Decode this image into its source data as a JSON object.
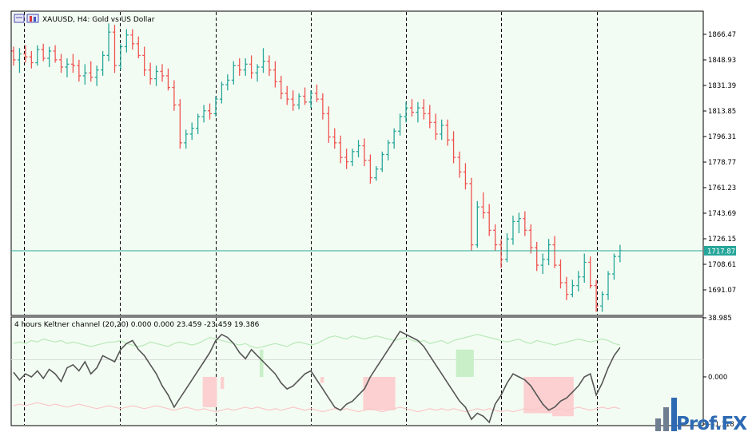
{
  "header": {
    "symbol_title": "XAUUSD, H4:  Gold vs US Dollar",
    "indicator_title": "4 hours Keltner channel (20,20) 0.000 0.000 23.459 -23.459 19.386"
  },
  "price_axis": {
    "ticks": [
      "1866.47",
      "1848.93",
      "1831.39",
      "1813.85",
      "1796.31",
      "1778.77",
      "1761.23",
      "1743.69",
      "1726.15",
      "1708.61",
      "1691.07"
    ],
    "current_price": "1717.87"
  },
  "indicator_axis": {
    "ticks": [
      "38.985",
      "0.000",
      "-31.118"
    ]
  },
  "watermark": {
    "text": "Prof.FX"
  },
  "colors": {
    "background": "#f3fcf3",
    "bull": "#26a69a",
    "bear": "#ef5350",
    "grid": "#000000",
    "current_line": "#26a69a",
    "price_tag_bg": "#26a69a",
    "osc_line": "#555555",
    "band_upper": "#b7e9b7",
    "band_lower": "#f9c8c8",
    "hist_pos": "#c8efc8",
    "hist_neg": "#fcd0d0",
    "watermark_blue": "#2e6ab3",
    "watermark_gray": "#6f7f91"
  },
  "chart_data": [
    {
      "type": "candlestick",
      "title": "XAUUSD, H4:  Gold vs US Dollar",
      "ylim": [
        1680,
        1876
      ],
      "current_price": 1717.87,
      "ohlc": [
        [
          1855,
          1858,
          1845,
          1849
        ],
        [
          1849,
          1857,
          1840,
          1853
        ],
        [
          1853,
          1859,
          1847,
          1851
        ],
        [
          1851,
          1855,
          1843,
          1847
        ],
        [
          1847,
          1859,
          1845,
          1856
        ],
        [
          1856,
          1860,
          1848,
          1850
        ],
        [
          1850,
          1858,
          1844,
          1855
        ],
        [
          1855,
          1859,
          1847,
          1849
        ],
        [
          1849,
          1853,
          1840,
          1844
        ],
        [
          1844,
          1850,
          1837,
          1846
        ],
        [
          1846,
          1853,
          1840,
          1845
        ],
        [
          1845,
          1849,
          1834,
          1838
        ],
        [
          1838,
          1846,
          1832,
          1840
        ],
        [
          1840,
          1848,
          1834,
          1837
        ],
        [
          1837,
          1845,
          1831,
          1842
        ],
        [
          1842,
          1855,
          1838,
          1852
        ],
        [
          1852,
          1874,
          1848,
          1868
        ],
        [
          1868,
          1873,
          1840,
          1845
        ],
        [
          1845,
          1860,
          1842,
          1858
        ],
        [
          1858,
          1870,
          1854,
          1866
        ],
        [
          1866,
          1870,
          1856,
          1860
        ],
        [
          1860,
          1865,
          1850,
          1852
        ],
        [
          1852,
          1858,
          1838,
          1842
        ],
        [
          1842,
          1847,
          1832,
          1836
        ],
        [
          1836,
          1845,
          1831,
          1841
        ],
        [
          1841,
          1846,
          1834,
          1838
        ],
        [
          1838,
          1843,
          1828,
          1830
        ],
        [
          1830,
          1835,
          1814,
          1818
        ],
        [
          1818,
          1822,
          1788,
          1792
        ],
        [
          1792,
          1801,
          1788,
          1798
        ],
        [
          1798,
          1806,
          1794,
          1802
        ],
        [
          1802,
          1812,
          1798,
          1810
        ],
        [
          1810,
          1818,
          1806,
          1814
        ],
        [
          1814,
          1819,
          1808,
          1812
        ],
        [
          1812,
          1824,
          1810,
          1822
        ],
        [
          1822,
          1834,
          1819,
          1832
        ],
        [
          1832,
          1839,
          1828,
          1835
        ],
        [
          1835,
          1848,
          1832,
          1845
        ],
        [
          1845,
          1850,
          1838,
          1842
        ],
        [
          1842,
          1850,
          1838,
          1846
        ],
        [
          1846,
          1852,
          1836,
          1840
        ],
        [
          1840,
          1846,
          1834,
          1844
        ],
        [
          1844,
          1857,
          1840,
          1848
        ],
        [
          1848,
          1852,
          1838,
          1842
        ],
        [
          1842,
          1848,
          1830,
          1834
        ],
        [
          1834,
          1838,
          1822,
          1826
        ],
        [
          1826,
          1831,
          1818,
          1822
        ],
        [
          1822,
          1828,
          1814,
          1818
        ],
        [
          1818,
          1826,
          1815,
          1824
        ],
        [
          1824,
          1830,
          1818,
          1820
        ],
        [
          1820,
          1828,
          1816,
          1826
        ],
        [
          1826,
          1832,
          1820,
          1822
        ],
        [
          1822,
          1826,
          1808,
          1812
        ],
        [
          1812,
          1817,
          1792,
          1796
        ],
        [
          1796,
          1802,
          1788,
          1792
        ],
        [
          1792,
          1797,
          1778,
          1782
        ],
        [
          1782,
          1788,
          1774,
          1779
        ],
        [
          1779,
          1788,
          1776,
          1786
        ],
        [
          1786,
          1794,
          1782,
          1790
        ],
        [
          1790,
          1795,
          1776,
          1780
        ],
        [
          1780,
          1784,
          1764,
          1768
        ],
        [
          1768,
          1776,
          1766,
          1774
        ],
        [
          1774,
          1786,
          1772,
          1784
        ],
        [
          1784,
          1794,
          1780,
          1792
        ],
        [
          1792,
          1802,
          1788,
          1800
        ],
        [
          1800,
          1812,
          1797,
          1810
        ],
        [
          1810,
          1820,
          1806,
          1816
        ],
        [
          1816,
          1822,
          1810,
          1813
        ],
        [
          1813,
          1820,
          1806,
          1816
        ],
        [
          1816,
          1822,
          1808,
          1812
        ],
        [
          1812,
          1818,
          1802,
          1806
        ],
        [
          1806,
          1812,
          1794,
          1798
        ],
        [
          1798,
          1808,
          1794,
          1804
        ],
        [
          1804,
          1808,
          1790,
          1794
        ],
        [
          1794,
          1800,
          1778,
          1782
        ],
        [
          1782,
          1786,
          1768,
          1772
        ],
        [
          1772,
          1778,
          1760,
          1764
        ],
        [
          1764,
          1768,
          1718,
          1722
        ],
        [
          1722,
          1752,
          1720,
          1748
        ],
        [
          1748,
          1758,
          1740,
          1744
        ],
        [
          1744,
          1750,
          1728,
          1732
        ],
        [
          1732,
          1736,
          1718,
          1722
        ],
        [
          1722,
          1726,
          1706,
          1712
        ],
        [
          1712,
          1730,
          1710,
          1726
        ],
        [
          1726,
          1742,
          1722,
          1738
        ],
        [
          1738,
          1744,
          1730,
          1740
        ],
        [
          1740,
          1745,
          1728,
          1732
        ],
        [
          1732,
          1736,
          1716,
          1720
        ],
        [
          1720,
          1724,
          1704,
          1708
        ],
        [
          1708,
          1716,
          1702,
          1712
        ],
        [
          1712,
          1726,
          1708,
          1722
        ],
        [
          1722,
          1728,
          1706,
          1708
        ],
        [
          1708,
          1712,
          1692,
          1696
        ],
        [
          1696,
          1700,
          1684,
          1688
        ],
        [
          1688,
          1698,
          1686,
          1694
        ],
        [
          1694,
          1704,
          1690,
          1700
        ],
        [
          1700,
          1716,
          1696,
          1710
        ],
        [
          1710,
          1714,
          1692,
          1694
        ],
        [
          1694,
          1698,
          1676,
          1680
        ],
        [
          1680,
          1690,
          1676,
          1688
        ],
        [
          1688,
          1704,
          1684,
          1702
        ],
        [
          1702,
          1716,
          1698,
          1714
        ],
        [
          1714,
          1722,
          1710,
          1718
        ]
      ]
    },
    {
      "type": "line",
      "title": "4 hours Keltner channel (20,20) 0.000 0.000 23.459 -23.459 19.386",
      "ylim": [
        -31.118,
        38.985
      ],
      "params": {
        "period": 20,
        "shift": 20,
        "level_1": 0.0,
        "level_2": 0.0,
        "upper": 23.459,
        "lower": -23.459,
        "last": 19.386
      },
      "series": [
        {
          "values": [
            3,
            -2,
            2,
            0,
            4,
            -1,
            5,
            2,
            -3,
            6,
            8,
            4,
            10,
            2,
            6,
            14,
            12,
            10,
            18,
            22,
            24,
            18,
            14,
            8,
            2,
            -6,
            -12,
            -20,
            -14,
            -8,
            -2,
            4,
            10,
            16,
            24,
            28,
            26,
            22,
            16,
            12,
            18,
            14,
            10,
            6,
            2,
            -4,
            -8,
            -6,
            -2,
            2,
            4,
            -2,
            -8,
            -14,
            -20,
            -22,
            -18,
            -16,
            -12,
            -8,
            0,
            6,
            12,
            18,
            24,
            30,
            28,
            26,
            24,
            20,
            14,
            8,
            2,
            -4,
            -10,
            -16,
            -20,
            -28,
            -24,
            -26,
            -30,
            -18,
            -12,
            -4,
            2,
            0,
            -2,
            -6,
            -12,
            -18,
            -22,
            -20,
            -16,
            -14,
            -10,
            -6,
            0,
            2,
            -12,
            -4,
            6,
            14,
            19.386
          ]
        },
        {
          "values": [
            22,
            23,
            22,
            24,
            23,
            25,
            24,
            23,
            24,
            22,
            23,
            22,
            21,
            20,
            21,
            22,
            23,
            23,
            24,
            22,
            21,
            20,
            21,
            23,
            22,
            21,
            20,
            22,
            23,
            22,
            21,
            22,
            24,
            26,
            25,
            24,
            23,
            22,
            21,
            22,
            20,
            19,
            20,
            21,
            22,
            21,
            20,
            22,
            23,
            22,
            21,
            22,
            24,
            26,
            27,
            26,
            25,
            27,
            26,
            25,
            26,
            27,
            26,
            25,
            24,
            25,
            26,
            24,
            23,
            24,
            22,
            23,
            24,
            22,
            24,
            25,
            26,
            27,
            28,
            27,
            26,
            25,
            24,
            23,
            24,
            25,
            23,
            22,
            24,
            23,
            22,
            21,
            22,
            23,
            24,
            25,
            24,
            23,
            24,
            25,
            24,
            22,
            21
          ]
        },
        {
          "values": [
            -19,
            -18,
            -19,
            -18,
            -17,
            -18,
            -19,
            -18,
            -19,
            -20,
            -19,
            -18,
            -19,
            -20,
            -21,
            -20,
            -19,
            -20,
            -21,
            -20,
            -19,
            -20,
            -21,
            -20,
            -19,
            -20,
            -21,
            -22,
            -21,
            -20,
            -21,
            -22,
            -21,
            -22,
            -23,
            -22,
            -21,
            -22,
            -21,
            -20,
            -21,
            -20,
            -21,
            -22,
            -21,
            -22,
            -21,
            -20,
            -21,
            -22,
            -21,
            -22,
            -23,
            -22,
            -21,
            -22,
            -21,
            -22,
            -23,
            -22,
            -21,
            -22,
            -23,
            -22,
            -21,
            -20,
            -21,
            -22,
            -23,
            -22,
            -21,
            -22,
            -21,
            -22,
            -21,
            -22,
            -23,
            -22,
            -21,
            -22,
            -21,
            -22,
            -23,
            -22,
            -23,
            -22,
            -21,
            -22,
            -21,
            -20,
            -21,
            -22,
            -21,
            -22,
            -21,
            -20,
            -21,
            -22,
            -21,
            -20,
            -21,
            -20,
            -21
          ]
        }
      ],
      "histogram": [
        {
          "from": 53,
          "to": 56,
          "value": -20
        },
        {
          "from": 58,
          "to": 58,
          "value": -8
        },
        {
          "from": 69,
          "to": 69,
          "value": 18
        },
        {
          "from": 86,
          "to": 86,
          "value": -4
        },
        {
          "from": 98,
          "to": 106,
          "value": -22
        },
        {
          "from": 124,
          "to": 128,
          "value": 18
        },
        {
          "from": 143,
          "to": 151,
          "value": -24
        },
        {
          "from": 151,
          "to": 156,
          "value": -26
        }
      ]
    }
  ]
}
